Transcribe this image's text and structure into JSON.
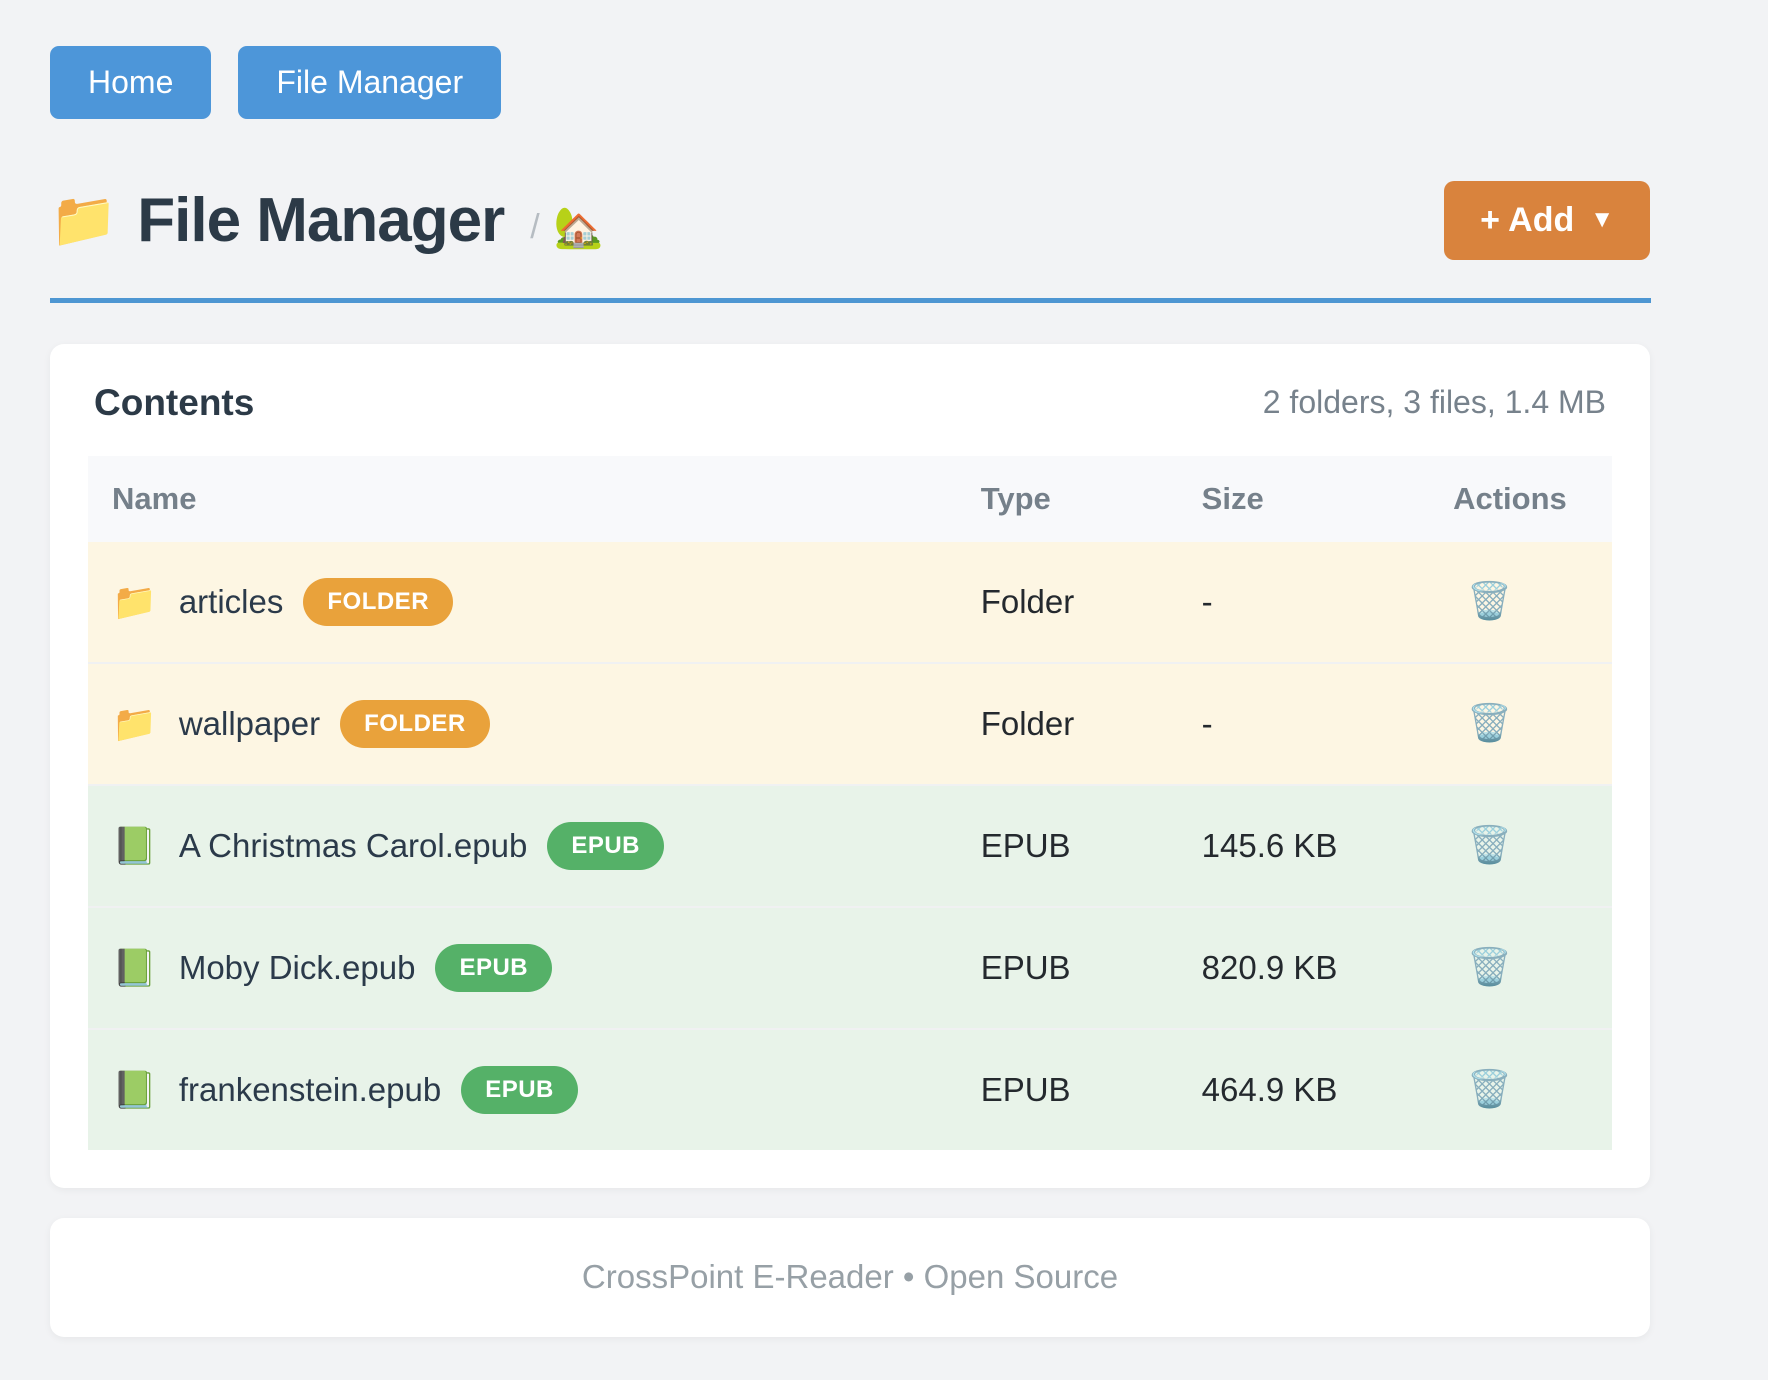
{
  "nav": {
    "home_label": "Home",
    "file_manager_label": "File Manager"
  },
  "header": {
    "title_icon": "📁",
    "title": "File Manager",
    "breadcrumb_separator": "/",
    "home_icon": "🏡",
    "add_label": "+ Add",
    "add_caret": "▼"
  },
  "contents": {
    "heading": "Contents",
    "summary": "2 folders, 3 files, 1.4 MB",
    "columns": {
      "name": "Name",
      "type": "Type",
      "size": "Size",
      "actions": "Actions"
    },
    "rows": [
      {
        "icon": "📁",
        "name": "articles",
        "badge": "FOLDER",
        "type": "Folder",
        "size": "-",
        "kind": "folder",
        "row_bg": "#fdf6e3",
        "badge_bg": "#e9a23b",
        "action_icon": "🗑️"
      },
      {
        "icon": "📁",
        "name": "wallpaper",
        "badge": "FOLDER",
        "type": "Folder",
        "size": "-",
        "kind": "folder",
        "row_bg": "#fdf6e3",
        "badge_bg": "#e9a23b",
        "action_icon": "🗑️"
      },
      {
        "icon": "📗",
        "name": "A Christmas Carol.epub",
        "badge": "EPUB",
        "type": "EPUB",
        "size": "145.6 KB",
        "kind": "epub",
        "row_bg": "#e8f3e9",
        "badge_bg": "#55b168",
        "action_icon": "🗑️"
      },
      {
        "icon": "📗",
        "name": "Moby Dick.epub",
        "badge": "EPUB",
        "type": "EPUB",
        "size": "820.9 KB",
        "kind": "epub",
        "row_bg": "#e8f3e9",
        "badge_bg": "#55b168",
        "action_icon": "🗑️"
      },
      {
        "icon": "📗",
        "name": "frankenstein.epub",
        "badge": "EPUB",
        "type": "EPUB",
        "size": "464.9 KB",
        "kind": "epub",
        "row_bg": "#e8f3e9",
        "badge_bg": "#55b168",
        "action_icon": "🗑️"
      }
    ]
  },
  "footer": {
    "text": "CrossPoint E-Reader • Open Source"
  },
  "colors": {
    "nav_button": "#4d96d9",
    "add_button": "#d9833d",
    "title_rule": "#4e96d2",
    "folder_badge": "#e9a23b",
    "epub_badge": "#55b168",
    "folder_row_bg": "#fdf6e3",
    "epub_row_bg": "#e8f3e9",
    "table_header_bg": "#f8f9fb",
    "page_bg": "#f2f3f5"
  }
}
